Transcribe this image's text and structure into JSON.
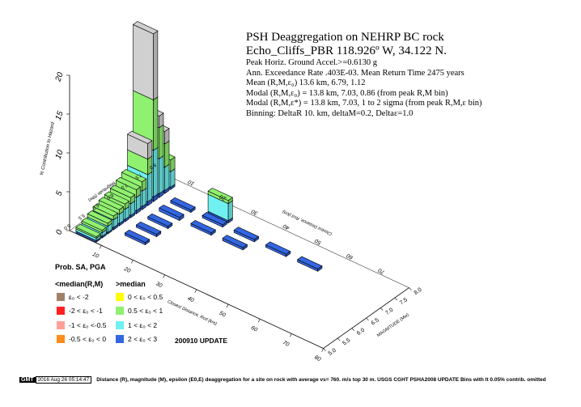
{
  "info": {
    "title": "PSH Deaggregation on NEHRP BC rock",
    "site": "Echo_Cliffs_PBR 118.926º W, 34.122 N.",
    "lines": [
      "Peak Horiz. Ground Accel.>=0.6130  g",
      "Ann. Exceedance Rate .403E-03. Mean Return Time 2475  years",
      "Mean (R,M,ε₀)  13.6 km, 6.79,  1.12",
      "Modal (R,M,ε₀) =  13.8 km, 7.03,  0.86 (from peak R,M bin)",
      "Modal (R,M,ε*) = 13.8 km, 7.03, 1 to 2 sigma  (from peak R,M,ε bin)",
      "Binning: DeltaR 10. km, deltaM=0.2, Deltaε=1.0"
    ]
  },
  "legend": {
    "title": "Prob. SA, PGA",
    "left_header": "<median(R,M)",
    "right_header": ">median",
    "update": "200910 UPDATE",
    "items": [
      {
        "label": "ε₀ < -2",
        "color": "#a0826a"
      },
      {
        "label": "-2 < ε₀ < -1",
        "color": "#ff2020"
      },
      {
        "label": "-1 < ε₀ <-0.5",
        "color": "#ffa098"
      },
      {
        "label": "-0.5 < ε₀ < 0",
        "color": "#ff8c1a"
      },
      {
        "label": "0 < ε₀ < 0.5",
        "color": "#ffff00"
      },
      {
        "label": "0.5 < ε₀ < 1",
        "color": "#90f070"
      },
      {
        "label": "1 < ε₀ < 2",
        "color": "#70f0f0"
      },
      {
        "label": "2 < ε₀ < 3",
        "color": "#3366e0"
      }
    ]
  },
  "footer": {
    "badge": "GMT",
    "timestamp": "2016 Aug 26 05:14:47",
    "caption": "Distance (R), magnitude (M), epsilon (E0,E) deaggregation for a site on rock with average vs= 760. m/s top 30 m. USGS CGHT PSHA2008 UPDATE    Bins with lt 0.05% contrib. omitted"
  },
  "chart_data": {
    "type": "bar3d",
    "title": "",
    "z_axis": {
      "label": "% Contribution to Hazard",
      "ticks": [
        "0",
        "5",
        "10",
        "15",
        "20"
      ],
      "range": [
        0,
        20
      ]
    },
    "r_axis": {
      "label": "Closest Distance, Rcd (km)",
      "ticks": [
        "10",
        "20",
        "30",
        "40",
        "50",
        "60",
        "70",
        "80"
      ],
      "range": [
        0,
        80
      ]
    },
    "m_axis": {
      "label": "MAGNITUDE (Mw)",
      "ticks": [
        "5.0",
        "5.5",
        "6.0",
        "6.5",
        "7.0",
        "7.5",
        "8.0"
      ],
      "range": [
        5.0,
        8.0
      ]
    },
    "back_r_ticks": [
      "10",
      "20",
      "30",
      "40",
      "50",
      "60",
      "70"
    ],
    "back_m_ticks": [
      "8.0",
      "7.5",
      "7.0",
      "6.5",
      "6.0",
      "5.5",
      "5.0"
    ],
    "back_m_label": "Magnitude (Mw)",
    "back_r_label": "Closest Distance, Rcd (km)",
    "series_colors": {
      "e2": "#3366e0",
      "e1": "#70f0f0",
      "e05": "#90f070",
      "e0": "#d0d0d0"
    },
    "bars": [
      {
        "r": 5,
        "m": 5.1,
        "segs": [
          [
            "e2",
            0.2
          ],
          [
            "e1",
            0.3
          ],
          [
            "e05",
            0.2
          ]
        ]
      },
      {
        "r": 5,
        "m": 5.3,
        "segs": [
          [
            "e2",
            0.2
          ],
          [
            "e1",
            0.5
          ],
          [
            "e05",
            0.3
          ]
        ]
      },
      {
        "r": 5,
        "m": 5.5,
        "segs": [
          [
            "e2",
            0.2
          ],
          [
            "e1",
            0.8
          ],
          [
            "e05",
            0.4
          ]
        ]
      },
      {
        "r": 5,
        "m": 5.7,
        "segs": [
          [
            "e2",
            0.3
          ],
          [
            "e1",
            1.0
          ],
          [
            "e05",
            0.5
          ]
        ]
      },
      {
        "r": 5,
        "m": 5.9,
        "segs": [
          [
            "e2",
            0.3
          ],
          [
            "e1",
            1.2
          ],
          [
            "e05",
            0.6
          ]
        ]
      },
      {
        "r": 5,
        "m": 6.1,
        "segs": [
          [
            "e2",
            0.3
          ],
          [
            "e1",
            1.3
          ],
          [
            "e05",
            0.7
          ]
        ]
      },
      {
        "r": 5,
        "m": 6.3,
        "segs": [
          [
            "e2",
            0.3
          ],
          [
            "e1",
            1.5
          ],
          [
            "e05",
            0.8
          ]
        ]
      },
      {
        "r": 5,
        "m": 6.5,
        "segs": [
          [
            "e2",
            0.4
          ],
          [
            "e1",
            1.7
          ],
          [
            "e05",
            1.0
          ]
        ]
      },
      {
        "r": 5,
        "m": 6.7,
        "segs": [
          [
            "e2",
            0.4
          ],
          [
            "e1",
            2.0
          ],
          [
            "e05",
            1.2
          ]
        ]
      },
      {
        "r": 5,
        "m": 6.9,
        "segs": [
          [
            "e2",
            0.5
          ],
          [
            "e1",
            3.5
          ],
          [
            "e05",
            2.0
          ],
          [
            "e0",
            2.0
          ]
        ]
      },
      {
        "r": 5,
        "m": 7.1,
        "segs": [
          [
            "e2",
            0.6
          ],
          [
            "e1",
            6.0
          ],
          [
            "e05",
            6.5
          ],
          [
            "e0",
            8.5
          ]
        ]
      },
      {
        "r": 5,
        "m": 7.3,
        "segs": [
          [
            "e2",
            0.5
          ],
          [
            "e1",
            4.5
          ],
          [
            "e05",
            4.0
          ],
          [
            "e0",
            1.5
          ]
        ]
      },
      {
        "r": 5,
        "m": 7.5,
        "segs": [
          [
            "e2",
            0.4
          ],
          [
            "e1",
            3.0
          ],
          [
            "e05",
            3.0
          ],
          [
            "e0",
            1.6
          ]
        ]
      },
      {
        "r": 5,
        "m": 7.7,
        "segs": [
          [
            "e2",
            0.3
          ],
          [
            "e1",
            2.0
          ],
          [
            "e05",
            1.5
          ]
        ]
      },
      {
        "r": 15,
        "m": 5.7,
        "segs": [
          [
            "e2",
            0.3
          ]
        ]
      },
      {
        "r": 15,
        "m": 6.1,
        "segs": [
          [
            "e2",
            0.3
          ]
        ]
      },
      {
        "r": 15,
        "m": 6.5,
        "segs": [
          [
            "e2",
            0.3
          ]
        ]
      },
      {
        "r": 15,
        "m": 6.9,
        "segs": [
          [
            "e2",
            0.4
          ]
        ]
      },
      {
        "r": 15,
        "m": 7.3,
        "segs": [
          [
            "e2",
            0.3
          ]
        ]
      },
      {
        "r": 25,
        "m": 6.9,
        "segs": [
          [
            "e2",
            0.3
          ]
        ]
      },
      {
        "r": 25,
        "m": 7.3,
        "segs": [
          [
            "e2",
            0.3
          ]
        ]
      },
      {
        "r": 25,
        "m": 7.5,
        "segs": [
          [
            "e2",
            0.3
          ],
          [
            "e1",
            2.2
          ],
          [
            "e05",
            0.4
          ]
        ]
      },
      {
        "r": 35,
        "m": 6.9,
        "segs": [
          [
            "e2",
            0.3
          ]
        ]
      },
      {
        "r": 35,
        "m": 7.3,
        "segs": [
          [
            "e2",
            0.3
          ]
        ]
      },
      {
        "r": 45,
        "m": 7.3,
        "segs": [
          [
            "e2",
            0.3
          ]
        ]
      },
      {
        "r": 55,
        "m": 7.3,
        "segs": [
          [
            "e2",
            0.3
          ]
        ]
      }
    ]
  }
}
